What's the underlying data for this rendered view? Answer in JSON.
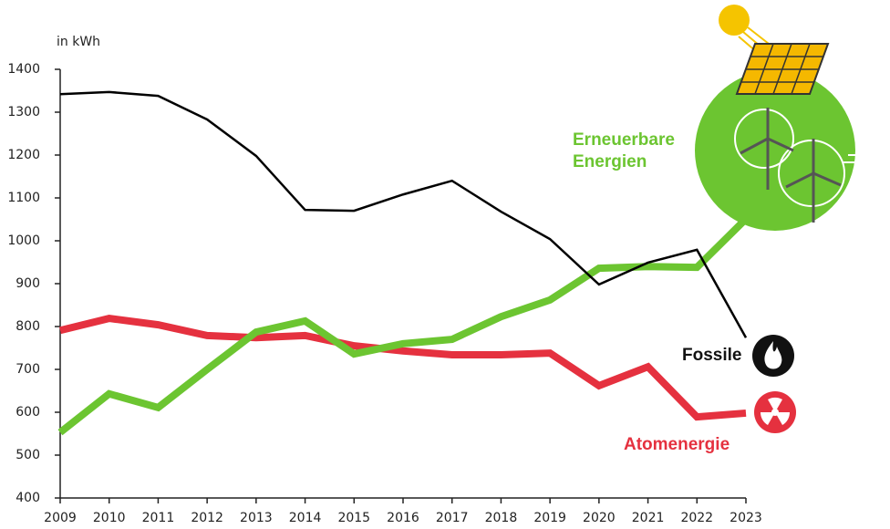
{
  "chart_data": {
    "type": "line",
    "y_label": "in kWh",
    "x": [
      2009,
      2010,
      2011,
      2012,
      2013,
      2014,
      2015,
      2016,
      2017,
      2018,
      2019,
      2020,
      2021,
      2022,
      2023
    ],
    "series": [
      {
        "name": "Fossile",
        "color": "#000000",
        "width": 2.5,
        "values": [
          1342,
          1347,
          1338,
          1283,
          1198,
          1072,
          1070,
          1108,
          1140,
          1068,
          1004,
          898,
          949,
          979,
          774
        ]
      },
      {
        "name": "Erneuerbare Energien",
        "color": "#6cc531",
        "width": 8,
        "values": [
          553,
          643,
          611,
          700,
          787,
          813,
          736,
          760,
          770,
          823,
          862,
          936,
          940,
          938,
          1051
        ]
      },
      {
        "name": "Atomenergie",
        "color": "#e5313f",
        "width": 8,
        "values": [
          791,
          819,
          804,
          779,
          774,
          779,
          755,
          743,
          734,
          734,
          738,
          662,
          706,
          589,
          598
        ]
      }
    ],
    "xlim": [
      2009,
      2023
    ],
    "xticks": [
      2009,
      2010,
      2011,
      2012,
      2013,
      2014,
      2015,
      2016,
      2017,
      2018,
      2019,
      2020,
      2021,
      2022,
      2023
    ],
    "ylim": [
      400,
      1400
    ],
    "yticks": [
      400,
      500,
      600,
      700,
      800,
      900,
      1000,
      1100,
      1200,
      1300,
      1400
    ]
  }
}
